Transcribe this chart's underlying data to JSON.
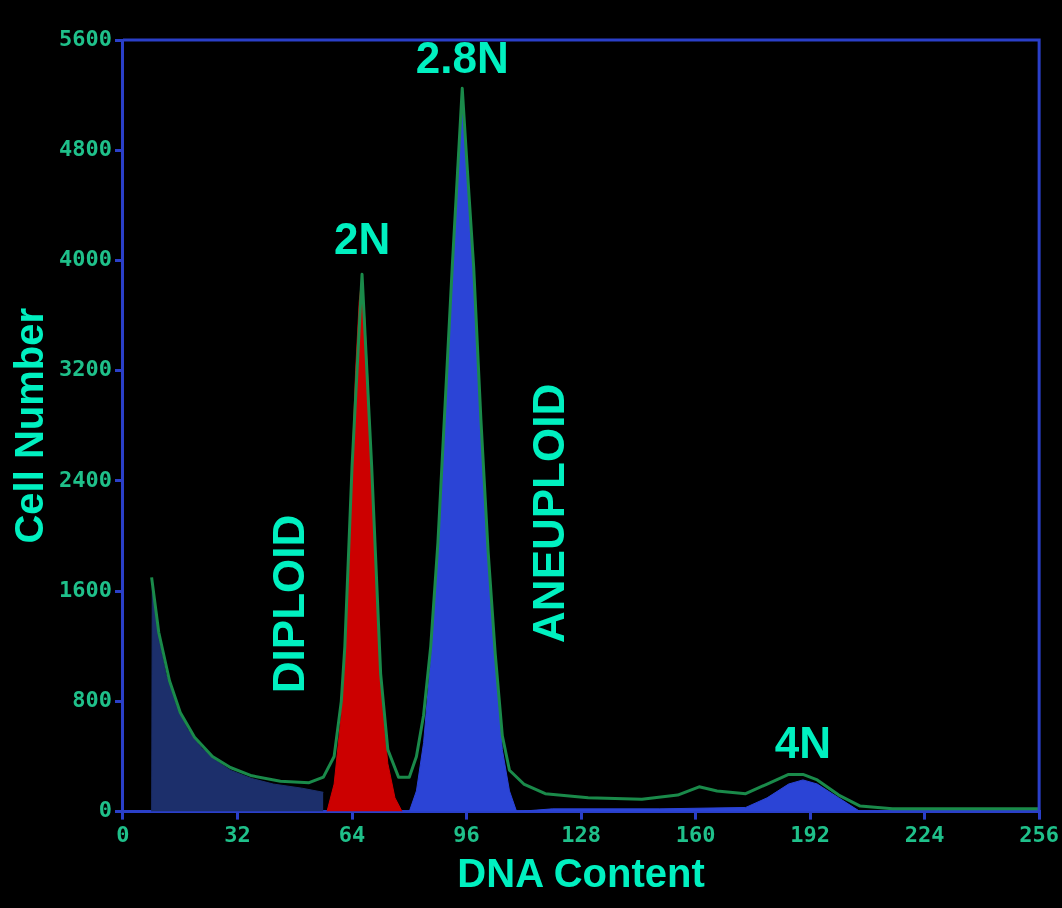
{
  "chart_data": {
    "type": "area",
    "xlabel": "DNA Content",
    "ylabel": "Cell Number",
    "xlim": [
      0,
      256
    ],
    "xticks": [
      0,
      32,
      64,
      96,
      128,
      160,
      192,
      224,
      256
    ],
    "ylim": [
      0,
      5600
    ],
    "yticks": [
      0,
      800,
      1600,
      2400,
      3200,
      4000,
      4800,
      5600
    ],
    "annotations": [
      {
        "text": "2N",
        "x": 66.8,
        "y": 3885
      },
      {
        "text": "2.8N",
        "x": 94.8,
        "y": 5200
      },
      {
        "text": "4N",
        "x": 190,
        "y": 230
      }
    ],
    "series": [
      {
        "color": "#1c2f6b",
        "x": [
          8,
          8.2,
          10,
          12,
          15,
          18,
          22,
          26,
          30,
          36,
          42,
          50,
          56
        ],
        "values": [
          0,
          1680,
          1250,
          1000,
          760,
          600,
          460,
          370,
          300,
          240,
          200,
          170,
          140
        ]
      },
      {
        "name": "DIPLOID",
        "color": "#cc0000",
        "x": [
          57,
          59,
          61,
          62,
          63,
          64,
          65,
          66,
          66.8,
          67.5,
          68.5,
          69.5,
          70.5,
          71.5,
          72.5,
          74,
          76,
          78
        ],
        "values": [
          0,
          200,
          700,
          1100,
          1700,
          2500,
          3200,
          3700,
          3885,
          3600,
          3100,
          2500,
          1800,
          1200,
          750,
          350,
          100,
          0
        ]
      },
      {
        "name": "ANEUPLOID",
        "color": "#2b44d6",
        "x": [
          80,
          82,
          84,
          86,
          88,
          90,
          92,
          93.5,
          94.8,
          96,
          98,
          100,
          102,
          104,
          106,
          108,
          110,
          120,
          150,
          174,
          180,
          186,
          190,
          194,
          200,
          206
        ],
        "values": [
          0,
          150,
          500,
          1100,
          1900,
          2900,
          3900,
          4700,
          5200,
          4700,
          3900,
          2800,
          1850,
          1100,
          450,
          150,
          0,
          20,
          20,
          30,
          100,
          200,
          230,
          200,
          100,
          0
        ]
      },
      {
        "type": "line",
        "color": "#1a8a4a",
        "x": [
          8,
          10,
          13,
          16,
          20,
          25,
          30,
          36,
          44,
          52,
          56,
          59,
          61,
          62,
          64,
          66.8,
          69.5,
          72,
          74,
          77,
          80,
          82,
          84,
          86,
          88,
          90,
          92,
          94.8,
          96,
          98,
          100,
          102,
          104,
          106,
          108,
          112,
          118,
          130,
          145,
          155,
          161,
          166,
          174,
          180,
          186,
          190,
          194,
          200,
          206,
          215,
          256
        ],
        "values": [
          1700,
          1300,
          950,
          720,
          540,
          400,
          320,
          260,
          220,
          210,
          250,
          400,
          800,
          1200,
          2500,
          3900,
          2500,
          1000,
          450,
          250,
          250,
          400,
          700,
          1200,
          1950,
          2950,
          3950,
          5250,
          4750,
          3950,
          2850,
          1900,
          1150,
          550,
          300,
          200,
          130,
          100,
          90,
          120,
          180,
          150,
          130,
          200,
          270,
          270,
          230,
          120,
          40,
          20,
          20
        ]
      }
    ]
  }
}
